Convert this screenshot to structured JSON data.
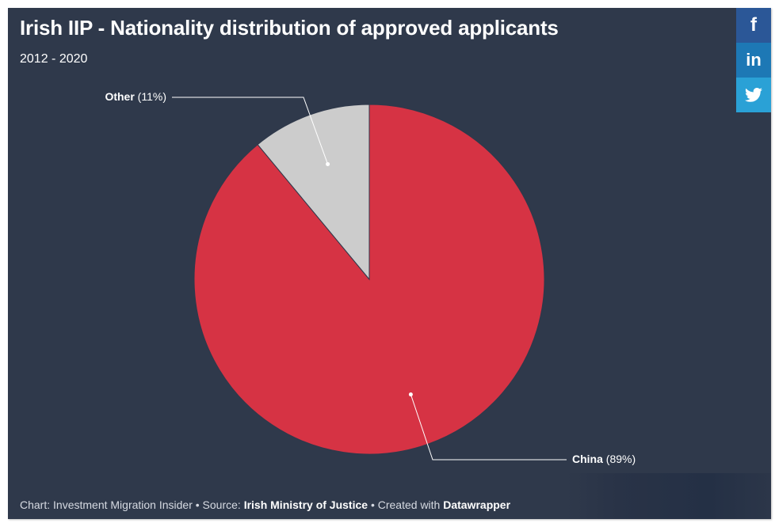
{
  "header": {
    "title": "Irish IIP - Nationality distribution of approved applicants",
    "subtitle": "2012 - 2020"
  },
  "share": {
    "facebook": "f",
    "linkedin": "in",
    "twitter_icon": "twitter-bird-icon"
  },
  "footer": {
    "prefix": "Chart: Investment Migration Insider • Source: ",
    "source": "Irish Ministry of Justice",
    "middle": " • Created with ",
    "tool": "Datawrapper"
  },
  "colors": {
    "background": "#2f394b",
    "china": "#d63344",
    "other": "#cccccc"
  },
  "chart_data": {
    "type": "pie",
    "title": "Irish IIP - Nationality distribution of approved applicants",
    "subtitle": "2012 - 2020",
    "slices": [
      {
        "label": "China",
        "value": 89,
        "value_label": "(89%)",
        "color": "#d63344"
      },
      {
        "label": "Other",
        "value": 11,
        "value_label": "(11%)",
        "color": "#cccccc"
      }
    ]
  }
}
